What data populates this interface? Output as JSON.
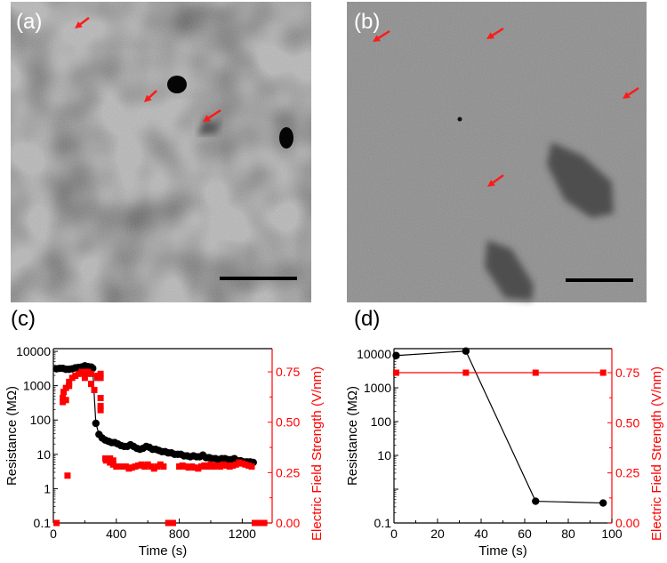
{
  "panels": {
    "a": {
      "label": "(a)"
    },
    "b": {
      "label": "(b)"
    },
    "c": {
      "label": "(c)"
    },
    "d": {
      "label": "(d)"
    }
  },
  "colors": {
    "resistance": "#000000",
    "field": "#ff0000",
    "arrow": "#ff1a1a"
  },
  "chart_data": [
    {
      "id": "c",
      "type": "scatter",
      "xlabel": "Time (s)",
      "ylabel": "Resistance (MΩ)",
      "y2label": "Electric Field Strength (V/nm)",
      "xlim": [
        0,
        1390
      ],
      "ylim": [
        0.1,
        12000
      ],
      "yscale": "log",
      "y2lim": [
        0,
        0.865
      ],
      "xticks": [
        "0",
        "400",
        "800",
        "1200"
      ],
      "xtick_values": [
        0,
        400,
        800,
        1200
      ],
      "yticks": [
        "0.1",
        "1",
        "10",
        "100",
        "1000",
        "10000"
      ],
      "ytick_values": [
        0.1,
        1,
        10,
        100,
        1000,
        10000
      ],
      "y2ticks": [
        "0.00",
        "0.25",
        "0.50",
        "0.75"
      ],
      "y2tick_values": [
        0,
        0.25,
        0.5,
        0.75
      ],
      "grid": false,
      "series": [
        {
          "axis": "left",
          "marker": "circle",
          "line": true,
          "color": "#000000",
          "x": [
            20,
            40,
            60,
            80,
            100,
            120,
            140,
            160,
            180,
            200,
            220,
            240,
            250,
            270,
            290,
            310,
            330,
            350,
            370,
            390,
            410,
            430,
            450,
            470,
            490,
            510,
            530,
            550,
            570,
            590,
            610,
            630,
            650,
            670,
            690,
            710,
            730,
            750,
            770,
            790,
            810,
            830,
            850,
            870,
            890,
            910,
            930,
            950,
            970,
            990,
            1010,
            1030,
            1050,
            1070,
            1090,
            1110,
            1130,
            1150,
            1170,
            1190,
            1210,
            1230,
            1250,
            1270
          ],
          "y": [
            3100,
            3200,
            3200,
            3000,
            3000,
            3100,
            3300,
            3400,
            3500,
            3800,
            3600,
            3500,
            3200,
            80,
            38,
            30,
            26,
            24,
            22,
            22,
            20,
            18,
            17,
            17,
            19,
            17,
            15,
            14,
            15,
            17,
            16,
            14,
            14,
            13,
            12,
            12,
            11,
            11,
            10,
            10,
            10,
            9,
            9,
            8.5,
            9,
            8.5,
            8.5,
            9.5,
            8,
            8,
            7.5,
            7.5,
            7,
            7.5,
            7.5,
            7,
            7,
            7.5,
            6.5,
            6.5,
            6,
            6,
            6,
            5.8
          ]
        },
        {
          "axis": "right",
          "marker": "square",
          "line": false,
          "color": "#ff0000",
          "x": [
            20,
            60,
            60,
            65,
            80,
            80,
            90,
            100,
            100,
            120,
            140,
            160,
            180,
            200,
            200,
            220,
            240,
            240,
            260,
            280,
            280,
            300,
            300,
            300,
            300,
            300,
            330,
            335,
            360,
            360,
            380,
            380,
            400,
            430,
            460,
            480,
            500,
            520,
            540,
            560,
            580,
            600,
            620,
            640,
            660,
            680,
            700,
            730,
            760,
            800,
            820,
            840,
            860,
            880,
            900,
            920,
            940,
            960,
            980,
            1000,
            1020,
            1040,
            1060,
            1080,
            1100,
            1120,
            1140,
            1160,
            1180,
            1200,
            1220,
            1240,
            1260,
            1280,
            1300,
            1320,
            1340
          ],
          "y": [
            0,
            0.6,
            0.62,
            0.65,
            0.61,
            0.67,
            0.235,
            0.68,
            0.7,
            0.72,
            0.73,
            0.74,
            0.75,
            0.74,
            0.72,
            0.75,
            0.74,
            0.69,
            0.66,
            0.72,
            0.73,
            0.74,
            0.72,
            0.62,
            0.58,
            0.56,
            0.32,
            0.31,
            0.32,
            0.3,
            0.31,
            0.29,
            0.28,
            0.28,
            0.28,
            0.27,
            0.275,
            0.28,
            0.285,
            0.29,
            0.28,
            0.29,
            0.28,
            0.27,
            0.28,
            0.29,
            0.28,
            0,
            0,
            0.28,
            0.285,
            0.28,
            0.275,
            0.28,
            0.275,
            0.27,
            0.28,
            0.285,
            0.28,
            0.29,
            0.28,
            0.285,
            0.28,
            0.29,
            0.285,
            0.28,
            0.285,
            0.29,
            0.3,
            0.295,
            0.29,
            0.285,
            0.28,
            0,
            0,
            0,
            0
          ]
        }
      ]
    },
    {
      "id": "d",
      "type": "line",
      "xlabel": "Time (s)",
      "ylabel": "Resistance (MΩ)",
      "y2label": "Electric Field Strength (V/nm)",
      "xlim": [
        0,
        100
      ],
      "ylim": [
        0.1,
        14400
      ],
      "yscale": "log",
      "y2lim": [
        0,
        0.87
      ],
      "xticks": [
        "0",
        "20",
        "40",
        "60",
        "80",
        "100"
      ],
      "xtick_values": [
        0,
        20,
        40,
        60,
        80,
        100
      ],
      "yticks": [
        "0.1",
        "",
        "10",
        "100",
        "1000",
        "10000"
      ],
      "ytick_values": [
        0.1,
        1,
        10,
        100,
        1000,
        10000
      ],
      "y2ticks": [
        "0.00",
        "0.25",
        "0.50",
        "0.75"
      ],
      "y2tick_values": [
        0,
        0.25,
        0.5,
        0.75
      ],
      "grid": false,
      "series": [
        {
          "axis": "left",
          "marker": "circle",
          "line": true,
          "color": "#000000",
          "x": [
            1,
            33,
            65,
            96
          ],
          "y": [
            9000,
            12200,
            0.44,
            0.39
          ]
        },
        {
          "axis": "right",
          "marker": "square",
          "line": true,
          "color": "#ff0000",
          "x": [
            1,
            33,
            65,
            96
          ],
          "y": [
            0.75,
            0.75,
            0.75,
            0.75
          ]
        }
      ]
    }
  ]
}
